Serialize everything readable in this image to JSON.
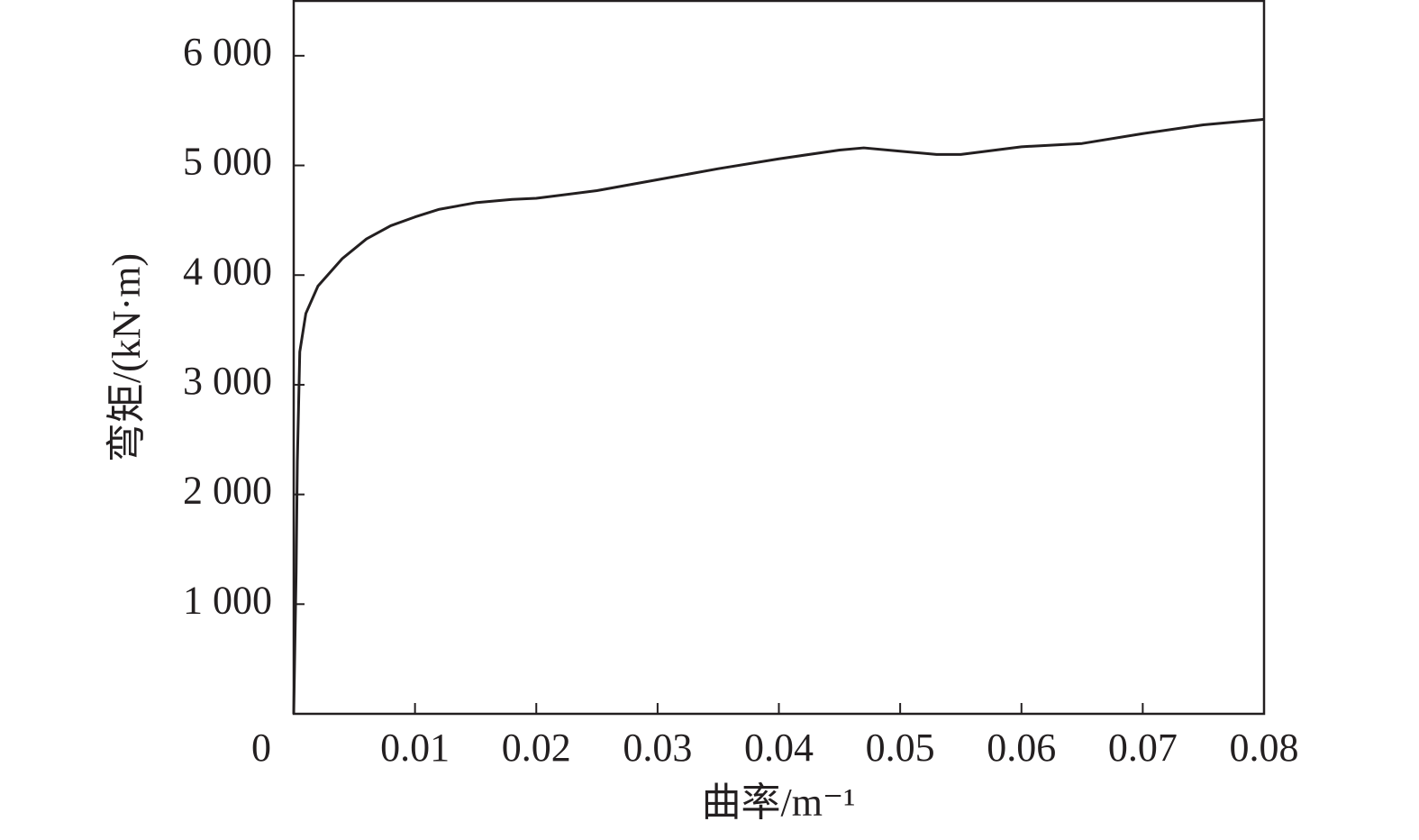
{
  "chart_data": {
    "type": "line",
    "xlabel": "曲率/m⁻¹",
    "ylabel": "弯矩/(kN·m)",
    "xlim": [
      0,
      0.08
    ],
    "ylim": [
      0,
      6500
    ],
    "xticks": [
      0,
      0.01,
      0.02,
      0.03,
      0.04,
      0.05,
      0.06,
      0.07,
      0.08
    ],
    "yticks": [
      {
        "value": 1000,
        "label": "1 000"
      },
      {
        "value": 2000,
        "label": "2 000"
      },
      {
        "value": 3000,
        "label": "3 000"
      },
      {
        "value": 4000,
        "label": "4 000"
      },
      {
        "value": 5000,
        "label": "5 000"
      },
      {
        "value": 6000,
        "label": "6 000"
      }
    ],
    "x": [
      0,
      0.0002,
      0.0003,
      0.0005,
      0.001,
      0.002,
      0.004,
      0.006,
      0.008,
      0.01,
      0.012,
      0.015,
      0.018,
      0.02,
      0.025,
      0.03,
      0.035,
      0.04,
      0.045,
      0.047,
      0.05,
      0.053,
      0.055,
      0.06,
      0.065,
      0.07,
      0.075,
      0.08
    ],
    "series": [
      {
        "color": "#231f20",
        "values": [
          0,
          1300,
          2300,
          3300,
          3650,
          3900,
          4150,
          4330,
          4450,
          4530,
          4600,
          4660,
          4690,
          4700,
          4770,
          4870,
          4970,
          5060,
          5140,
          5160,
          5130,
          5100,
          5100,
          5170,
          5200,
          5290,
          5370,
          5420
        ]
      }
    ]
  }
}
